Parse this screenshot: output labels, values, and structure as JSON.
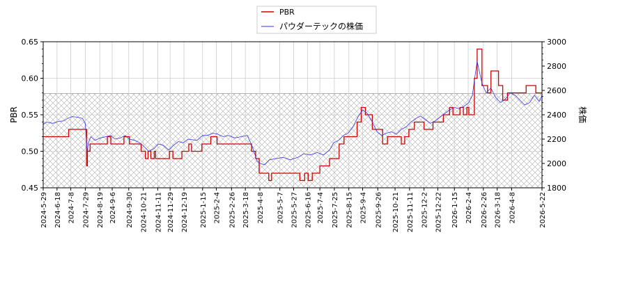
{
  "chart_data": {
    "type": "line",
    "ylabel_left": "PBR",
    "ylabel_right": "株価",
    "ylim_left": [
      0.45,
      0.65
    ],
    "ylim_right": [
      1800,
      3000
    ],
    "yticks_left": [
      "0.45",
      "0.50",
      "0.55",
      "0.60",
      "0.65"
    ],
    "yticks_right": [
      "1800",
      "2000",
      "2200",
      "2400",
      "2600",
      "2800",
      "3000"
    ],
    "x_range": [
      "2024-05-29",
      "2026-05-22"
    ],
    "xtick_labels": [
      "2024-5-29",
      "2024-6-18",
      "2024-7-8",
      "2024-7-29",
      "2024-8-19",
      "2024-9-6",
      "2024-9-30",
      "2024-10-21",
      "2024-11-11",
      "2024-11-29",
      "2024-12-19",
      "2025-1-15",
      "2025-2-4",
      "2025-2-26",
      "2025-3-18",
      "2025-4-8",
      "2025-5-7",
      "2025-5-27",
      "2025-6-16",
      "2025-7-4",
      "2025-7-25",
      "2025-8-15",
      "2025-9-4",
      "2025-9-26",
      "2025-10-21",
      "2025-11-11",
      "2025-12-2",
      "2025-12-22",
      "2026-1-15",
      "2026-2-4",
      "2026-2-26",
      "2026-3-18",
      "2026-4-8",
      "2026-5-22"
    ],
    "band_right": [
      1800,
      2575
    ],
    "grid": true,
    "legend": {
      "placement": "top-center"
    },
    "series": [
      {
        "name": "PBR",
        "axis": "left",
        "color": "#cc0000",
        "points": [
          [
            "2024-05-29",
            0.52
          ],
          [
            "2024-07-03",
            0.52
          ],
          [
            "2024-07-05",
            0.53
          ],
          [
            "2024-07-29",
            0.53
          ],
          [
            "2024-07-31",
            0.48
          ],
          [
            "2024-08-01",
            0.5
          ],
          [
            "2024-08-05",
            0.51
          ],
          [
            "2024-08-28",
            0.51
          ],
          [
            "2024-08-30",
            0.52
          ],
          [
            "2024-09-04",
            0.51
          ],
          [
            "2024-09-20",
            0.51
          ],
          [
            "2024-09-23",
            0.52
          ],
          [
            "2024-10-01",
            0.51
          ],
          [
            "2024-10-15",
            0.51
          ],
          [
            "2024-10-18",
            0.5
          ],
          [
            "2024-10-24",
            0.49
          ],
          [
            "2024-10-28",
            0.5
          ],
          [
            "2024-11-01",
            0.49
          ],
          [
            "2024-11-06",
            0.5
          ],
          [
            "2024-11-08",
            0.49
          ],
          [
            "2024-11-25",
            0.49
          ],
          [
            "2024-11-28",
            0.5
          ],
          [
            "2024-12-03",
            0.49
          ],
          [
            "2024-12-12",
            0.49
          ],
          [
            "2024-12-16",
            0.5
          ],
          [
            "2024-12-26",
            0.51
          ],
          [
            "2024-12-30",
            0.5
          ],
          [
            "2025-01-10",
            0.5
          ],
          [
            "2025-01-14",
            0.51
          ],
          [
            "2025-01-24",
            0.51
          ],
          [
            "2025-01-27",
            0.52
          ],
          [
            "2025-02-05",
            0.51
          ],
          [
            "2025-03-21",
            0.51
          ],
          [
            "2025-03-27",
            0.5
          ],
          [
            "2025-04-02",
            0.49
          ],
          [
            "2025-04-07",
            0.47
          ],
          [
            "2025-04-18",
            0.47
          ],
          [
            "2025-04-21",
            0.46
          ],
          [
            "2025-04-25",
            0.47
          ],
          [
            "2025-06-02",
            0.47
          ],
          [
            "2025-06-05",
            0.46
          ],
          [
            "2025-06-12",
            0.47
          ],
          [
            "2025-06-17",
            0.46
          ],
          [
            "2025-06-23",
            0.47
          ],
          [
            "2025-07-01",
            0.47
          ],
          [
            "2025-07-04",
            0.48
          ],
          [
            "2025-07-14",
            0.48
          ],
          [
            "2025-07-18",
            0.49
          ],
          [
            "2025-07-29",
            0.49
          ],
          [
            "2025-08-01",
            0.51
          ],
          [
            "2025-08-08",
            0.52
          ],
          [
            "2025-08-20",
            0.52
          ],
          [
            "2025-08-27",
            0.54
          ],
          [
            "2025-09-02",
            0.56
          ],
          [
            "2025-09-08",
            0.55
          ],
          [
            "2025-09-18",
            0.53
          ],
          [
            "2025-09-30",
            0.53
          ],
          [
            "2025-10-03",
            0.51
          ],
          [
            "2025-10-08",
            0.51
          ],
          [
            "2025-10-10",
            0.52
          ],
          [
            "2025-10-27",
            0.52
          ],
          [
            "2025-10-30",
            0.51
          ],
          [
            "2025-11-04",
            0.52
          ],
          [
            "2025-11-10",
            0.53
          ],
          [
            "2025-11-18",
            0.54
          ],
          [
            "2025-11-27",
            0.54
          ],
          [
            "2025-12-02",
            0.53
          ],
          [
            "2025-12-11",
            0.53
          ],
          [
            "2025-12-15",
            0.54
          ],
          [
            "2025-12-30",
            0.55
          ],
          [
            "2026-01-05",
            0.55
          ],
          [
            "2026-01-08",
            0.56
          ],
          [
            "2026-01-13",
            0.55
          ],
          [
            "2026-01-20",
            0.55
          ],
          [
            "2026-01-23",
            0.56
          ],
          [
            "2026-01-28",
            0.55
          ],
          [
            "2026-02-02",
            0.56
          ],
          [
            "2026-02-05",
            0.55
          ],
          [
            "2026-02-10",
            0.55
          ],
          [
            "2026-02-13",
            0.6
          ],
          [
            "2026-02-17",
            0.64
          ],
          [
            "2026-02-24",
            0.59
          ],
          [
            "2026-03-04",
            0.58
          ],
          [
            "2026-03-09",
            0.61
          ],
          [
            "2026-03-20",
            0.59
          ],
          [
            "2026-03-26",
            0.57
          ],
          [
            "2026-04-02",
            0.58
          ],
          [
            "2026-04-09",
            0.58
          ],
          [
            "2026-04-29",
            0.59
          ],
          [
            "2026-05-13",
            0.58
          ],
          [
            "2026-05-22",
            0.58
          ]
        ]
      },
      {
        "name": "パウダーテックの株価",
        "axis": "right",
        "color": "#3333dd",
        "points": [
          [
            "2024-05-29",
            2320
          ],
          [
            "2024-06-03",
            2340
          ],
          [
            "2024-06-12",
            2330
          ],
          [
            "2024-06-20",
            2345
          ],
          [
            "2024-06-28",
            2350
          ],
          [
            "2024-07-03",
            2370
          ],
          [
            "2024-07-10",
            2385
          ],
          [
            "2024-07-18",
            2380
          ],
          [
            "2024-07-25",
            2370
          ],
          [
            "2024-07-29",
            2330
          ],
          [
            "2024-08-01",
            2080
          ],
          [
            "2024-08-02",
            2160
          ],
          [
            "2024-08-06",
            2220
          ],
          [
            "2024-08-12",
            2190
          ],
          [
            "2024-08-20",
            2210
          ],
          [
            "2024-08-28",
            2220
          ],
          [
            "2024-09-04",
            2230
          ],
          [
            "2024-09-10",
            2200
          ],
          [
            "2024-09-18",
            2210
          ],
          [
            "2024-09-25",
            2230
          ],
          [
            "2024-10-01",
            2200
          ],
          [
            "2024-10-09",
            2190
          ],
          [
            "2024-10-16",
            2170
          ],
          [
            "2024-10-22",
            2140
          ],
          [
            "2024-10-29",
            2100
          ],
          [
            "2024-11-05",
            2120
          ],
          [
            "2024-11-12",
            2160
          ],
          [
            "2024-11-19",
            2150
          ],
          [
            "2024-11-27",
            2110
          ],
          [
            "2024-12-04",
            2150
          ],
          [
            "2024-12-11",
            2180
          ],
          [
            "2024-12-18",
            2170
          ],
          [
            "2024-12-25",
            2200
          ],
          [
            "2025-01-07",
            2190
          ],
          [
            "2025-01-15",
            2230
          ],
          [
            "2025-01-22",
            2230
          ],
          [
            "2025-01-30",
            2250
          ],
          [
            "2025-02-06",
            2240
          ],
          [
            "2025-02-14",
            2220
          ],
          [
            "2025-02-21",
            2230
          ],
          [
            "2025-03-03",
            2210
          ],
          [
            "2025-03-12",
            2220
          ],
          [
            "2025-03-21",
            2230
          ],
          [
            "2025-03-28",
            2140
          ],
          [
            "2025-04-04",
            2020
          ],
          [
            "2025-04-08",
            2000
          ],
          [
            "2025-04-15",
            1990
          ],
          [
            "2025-04-22",
            2030
          ],
          [
            "2025-05-01",
            2040
          ],
          [
            "2025-05-12",
            2050
          ],
          [
            "2025-05-22",
            2030
          ],
          [
            "2025-06-02",
            2050
          ],
          [
            "2025-06-11",
            2080
          ],
          [
            "2025-06-20",
            2070
          ],
          [
            "2025-06-30",
            2090
          ],
          [
            "2025-07-09",
            2070
          ],
          [
            "2025-07-18",
            2110
          ],
          [
            "2025-07-24",
            2170
          ],
          [
            "2025-07-31",
            2190
          ],
          [
            "2025-08-07",
            2230
          ],
          [
            "2025-08-14",
            2250
          ],
          [
            "2025-08-21",
            2300
          ],
          [
            "2025-08-28",
            2380
          ],
          [
            "2025-09-04",
            2440
          ],
          [
            "2025-09-11",
            2410
          ],
          [
            "2025-09-18",
            2340
          ],
          [
            "2025-09-25",
            2260
          ],
          [
            "2025-10-02",
            2230
          ],
          [
            "2025-10-09",
            2250
          ],
          [
            "2025-10-16",
            2260
          ],
          [
            "2025-10-23",
            2240
          ],
          [
            "2025-10-30",
            2280
          ],
          [
            "2025-11-06",
            2300
          ],
          [
            "2025-11-13",
            2340
          ],
          [
            "2025-11-20",
            2370
          ],
          [
            "2025-11-27",
            2390
          ],
          [
            "2025-12-04",
            2360
          ],
          [
            "2025-12-11",
            2330
          ],
          [
            "2025-12-18",
            2350
          ],
          [
            "2025-12-25",
            2380
          ],
          [
            "2026-01-08",
            2440
          ],
          [
            "2026-01-15",
            2460
          ],
          [
            "2026-01-22",
            2450
          ],
          [
            "2026-01-29",
            2470
          ],
          [
            "2026-02-05",
            2500
          ],
          [
            "2026-02-10",
            2560
          ],
          [
            "2026-02-13",
            2680
          ],
          [
            "2026-02-17",
            2840
          ],
          [
            "2026-02-20",
            2760
          ],
          [
            "2026-02-24",
            2660
          ],
          [
            "2026-03-02",
            2580
          ],
          [
            "2026-03-09",
            2620
          ],
          [
            "2026-03-16",
            2540
          ],
          [
            "2026-03-23",
            2500
          ],
          [
            "2026-03-30",
            2530
          ],
          [
            "2026-04-06",
            2580
          ],
          [
            "2026-04-13",
            2560
          ],
          [
            "2026-04-20",
            2520
          ],
          [
            "2026-04-27",
            2480
          ],
          [
            "2026-05-04",
            2500
          ],
          [
            "2026-05-11",
            2560
          ],
          [
            "2026-05-18",
            2510
          ],
          [
            "2026-05-22",
            2560
          ]
        ]
      }
    ]
  }
}
